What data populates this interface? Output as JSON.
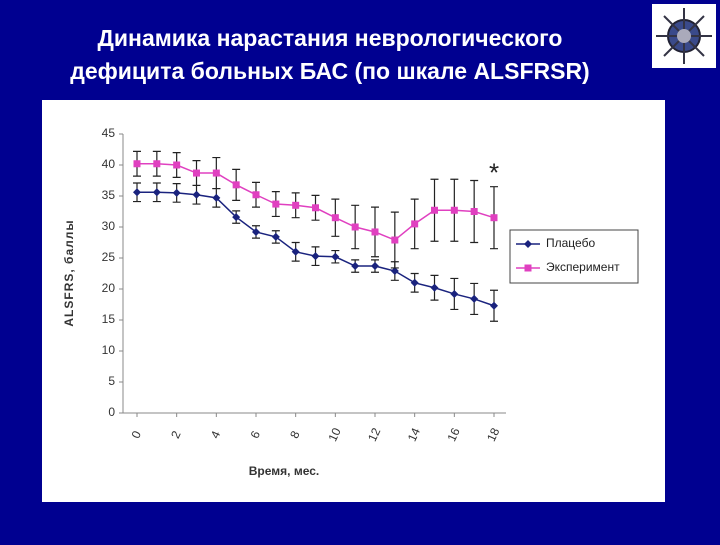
{
  "chart_data": {
    "type": "line",
    "title": [
      "Динамика нарастания неврологического",
      "дефицита больных БАС (по шкале ALSFRSR)"
    ],
    "x_label": "Время, мес.",
    "y_label": "ALSFRS, баллы",
    "annotation": "*",
    "x": [
      0,
      1,
      2,
      3,
      4,
      5,
      6,
      7,
      8,
      9,
      10,
      11,
      12,
      13,
      14,
      15,
      16,
      17,
      18
    ],
    "xlim": [
      0,
      18
    ],
    "xticks": [
      0,
      2,
      4,
      6,
      8,
      10,
      12,
      14,
      16,
      18
    ],
    "ylim": [
      0,
      45
    ],
    "yticks": [
      0,
      5,
      10,
      15,
      20,
      25,
      30,
      35,
      40,
      45
    ],
    "legend": "right",
    "series": [
      {
        "name": "Плацебо",
        "color": "#1a237e",
        "marker": "diamond",
        "values": [
          35.6,
          35.6,
          35.5,
          35.2,
          34.7,
          31.6,
          29.2,
          28.4,
          26,
          25.3,
          25.2,
          23.7,
          23.7,
          22.9,
          21,
          20.2,
          19.2,
          18.4,
          17.3
        ],
        "errors": [
          1.5,
          1.5,
          1.5,
          1.5,
          1.5,
          1,
          1,
          1,
          1.5,
          1.5,
          1,
          1,
          1,
          1.5,
          1.5,
          2,
          2.5,
          2.5,
          2.5
        ]
      },
      {
        "name": "Эксперимент",
        "color": "#e040c0",
        "marker": "square",
        "values": [
          40.2,
          40.2,
          40,
          38.7,
          38.7,
          36.8,
          35.2,
          33.7,
          33.5,
          33.1,
          31.5,
          30,
          29.2,
          27.9,
          30.5,
          32.7,
          32.7,
          32.5,
          31.5
        ],
        "errors": [
          2,
          2,
          2,
          2,
          2.5,
          2.5,
          2,
          2,
          2,
          2,
          3,
          3.5,
          4,
          4.5,
          4,
          5,
          5,
          5,
          5
        ]
      }
    ]
  }
}
